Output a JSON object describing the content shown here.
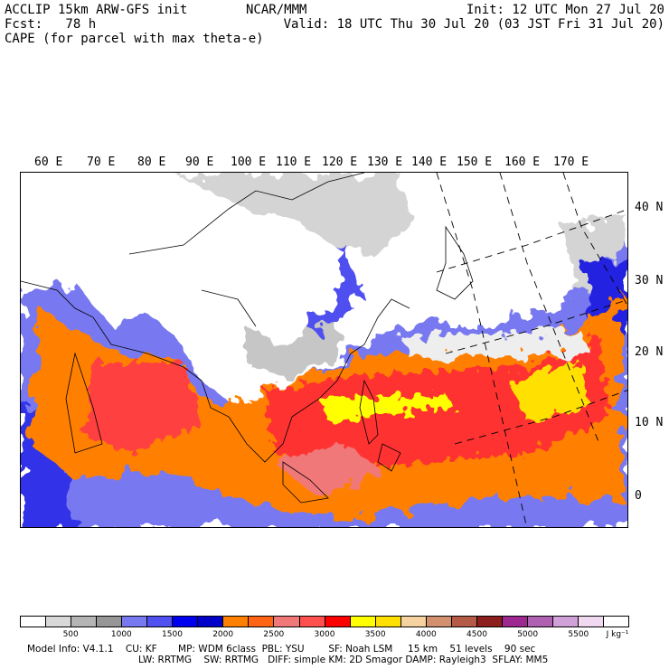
{
  "header": {
    "left1": "ACCLIP 15km ARW-GFS init",
    "left2": "Fcst:   78 h",
    "left3": "CAPE (for parcel with max theta-e)",
    "center": "NCAR/MMM",
    "right1": "Init: 12 UTC Mon 27 Jul 20",
    "right2": "Valid: 18 UTC Thu 30 Jul 20 (03 JST Fri 31 Jul 20)"
  },
  "map": {
    "longitude_labels": [
      "60 E",
      "70 E",
      "80 E",
      "90 E",
      "100 E",
      "110 E",
      "120 E",
      "130 E",
      "140 E",
      "150 E",
      "160 E",
      "170 E"
    ],
    "latitude_labels": [
      "40 N",
      "30 N",
      "20 N",
      "10 N",
      "0"
    ]
  },
  "colorbar": {
    "colors": [
      "#ffffff",
      "#d8d8d8",
      "#b4b4b4",
      "#969696",
      "#7878f0",
      "#5050f0",
      "#0000f0",
      "#0000c8",
      "#ff8000",
      "#ff6414",
      "#f07878",
      "#ff5050",
      "#ff0000",
      "#ffff00",
      "#ffe000",
      "#f5d2a0",
      "#d2906e",
      "#b45a46",
      "#8c1e1e",
      "#9c2890",
      "#b060b0",
      "#d0a0d8",
      "#f0d8f0",
      "#ffffff"
    ],
    "tick_labels": [
      "500",
      "1000",
      "1500",
      "2000",
      "2500",
      "3000",
      "3500",
      "4000",
      "4500",
      "5000",
      "5500"
    ],
    "units": "J kg⁻¹"
  },
  "footer": {
    "line1": "Model Info: V4.1.1    CU: KF       MP: WDM 6class  PBL: YSU        SF: Noah LSM     15 km    51 levels    90 sec",
    "line2": "LW: RRTMG    SW: RRTMG   DIFF: simple KM: 2D Smagor DAMP: Rayleigh3  SFLAY: MM5"
  }
}
